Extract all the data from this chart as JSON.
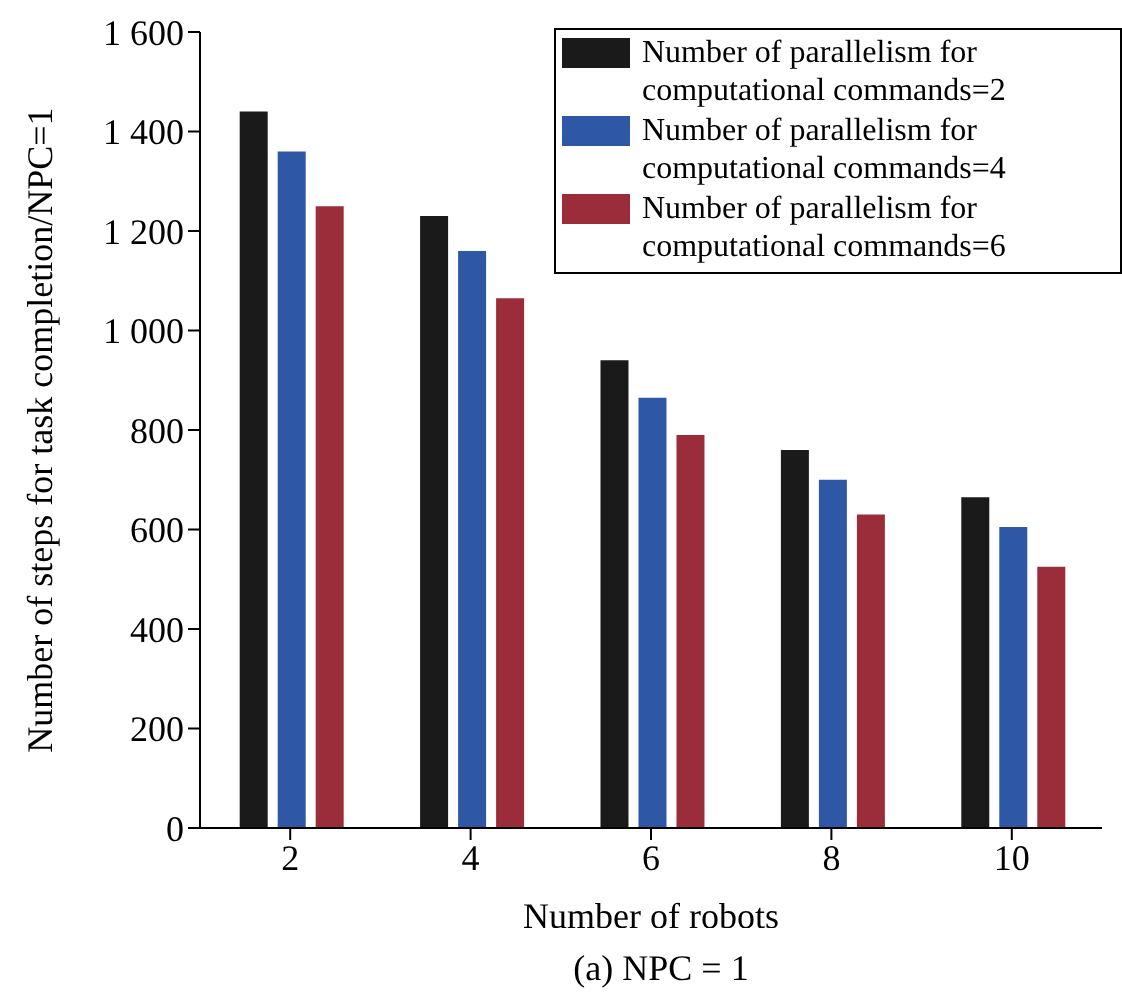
{
  "chart_data": {
    "type": "bar",
    "title": "(a) NPC = 1",
    "xlabel": "Number of robots",
    "ylabel": "Number of steps for task completion/NPC=1",
    "categories": [
      "2",
      "4",
      "6",
      "8",
      "10"
    ],
    "series": [
      {
        "name": "Number of parallelism for computational commands=2",
        "color": "#1a1a1a",
        "values": [
          1440,
          1230,
          940,
          760,
          665
        ]
      },
      {
        "name": "Number of parallelism for computational commands=4",
        "color": "#2e58a6",
        "values": [
          1360,
          1160,
          865,
          700,
          605
        ]
      },
      {
        "name": "Number of parallelism for computational commands=6",
        "color": "#9b2c3a",
        "values": [
          1250,
          1065,
          790,
          630,
          525
        ]
      }
    ],
    "ylim": [
      0,
      1600
    ],
    "yticks": [
      0,
      200,
      400,
      600,
      800,
      {
        "value": 1000,
        "label": "1 000"
      },
      {
        "value": 1200,
        "label": "1 200"
      },
      {
        "value": 1400,
        "label": "1 400"
      },
      {
        "value": 1600,
        "label": "1 600"
      }
    ],
    "grid": false,
    "legend": "top right"
  }
}
